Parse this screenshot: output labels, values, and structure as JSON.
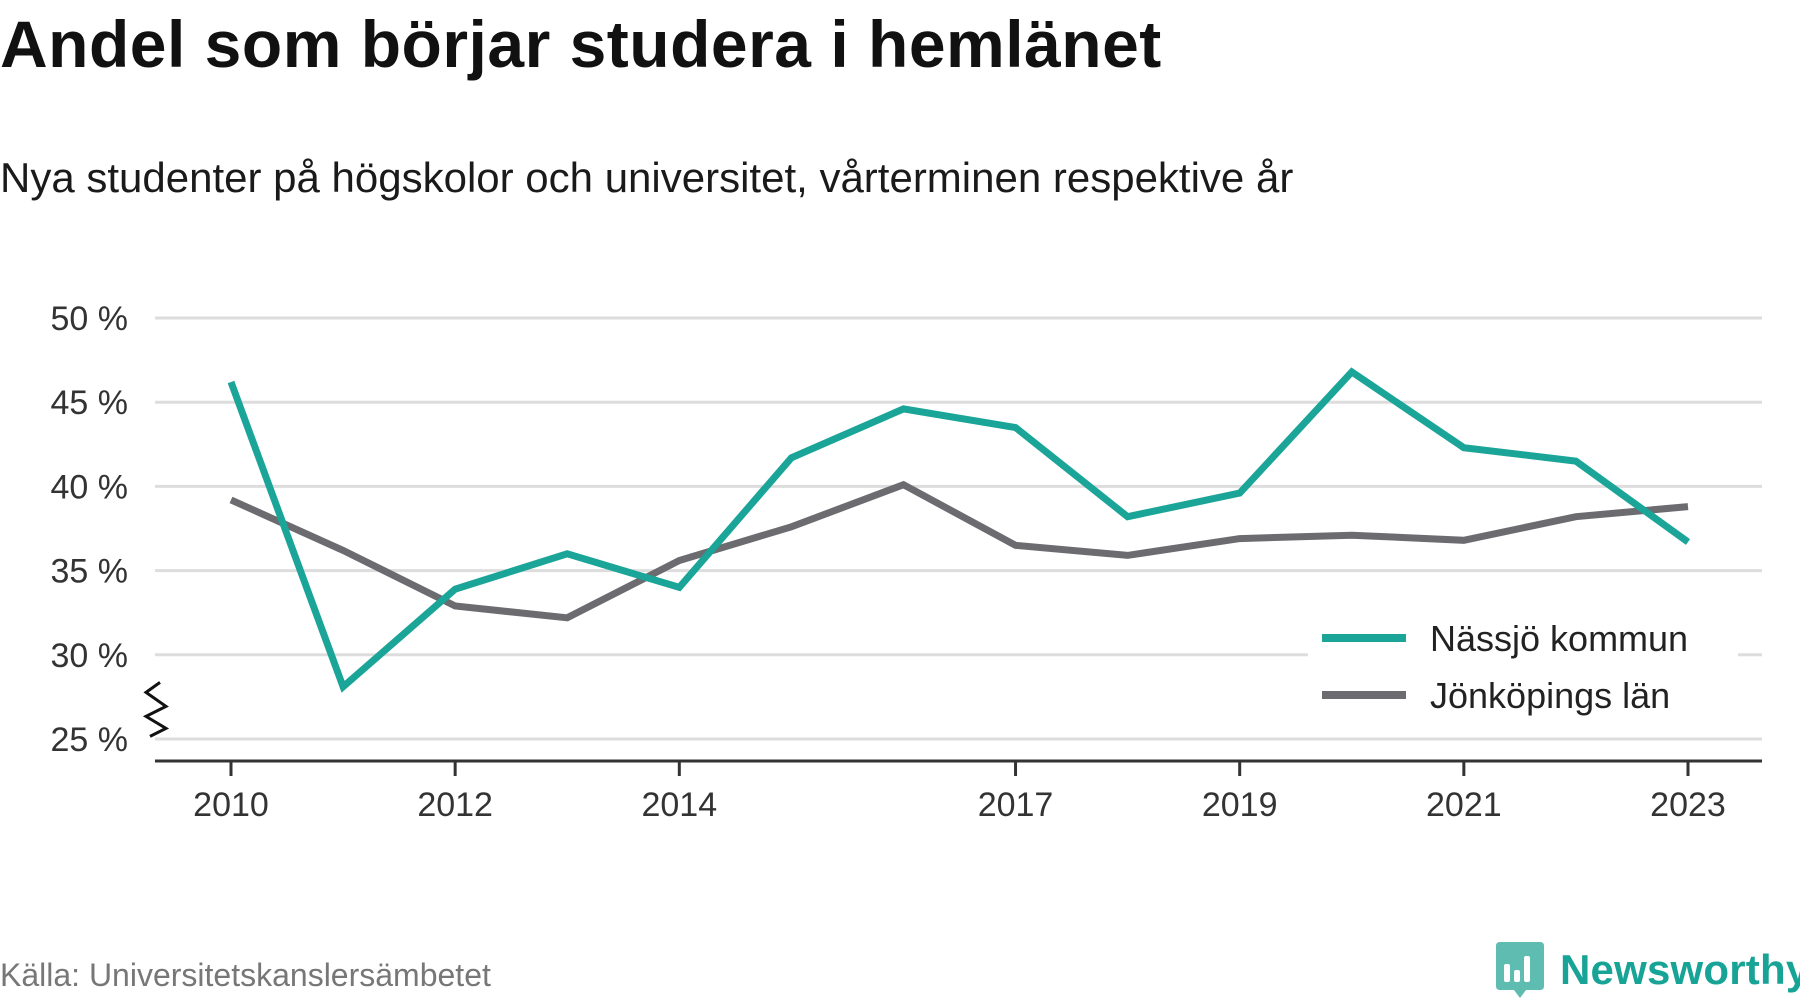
{
  "title": "Andel som börjar studera i hemlänet",
  "subtitle": "Nya studenter på högskolor och universitet, vårterminen respektive år",
  "source": "Källa: Universitetskanslersämbetet",
  "brand": "Newsworthy",
  "colors": {
    "teal": "#1aa598",
    "gray": "#6c6b70",
    "grid": "#dddddd",
    "axis": "#333333"
  },
  "chart_data": {
    "type": "line",
    "x": [
      2010,
      2011,
      2012,
      2013,
      2014,
      2015,
      2016,
      2017,
      2018,
      2019,
      2020,
      2021,
      2022,
      2023
    ],
    "x_tick_labels": [
      "2010",
      "2012",
      "2014",
      "2017",
      "2019",
      "2021",
      "2023"
    ],
    "y_tick_labels": [
      "50 %",
      "45 %",
      "40 %",
      "35 %",
      "30 %",
      "25 %"
    ],
    "y_ticks": [
      50,
      45,
      40,
      35,
      30,
      25
    ],
    "ylim": [
      25,
      50
    ],
    "y_axis_break": true,
    "grid": true,
    "legend_position": "bottom-right",
    "series": [
      {
        "name": "Nässjö kommun",
        "color": "#1aa598",
        "values": [
          46.2,
          28.1,
          33.9,
          36.0,
          34.0,
          41.7,
          44.6,
          43.5,
          38.2,
          39.6,
          46.8,
          42.3,
          41.5,
          36.7
        ]
      },
      {
        "name": "Jönköpings län",
        "color": "#6c6b70",
        "values": [
          39.2,
          36.2,
          32.9,
          32.2,
          35.6,
          37.6,
          40.1,
          36.5,
          35.9,
          36.9,
          37.1,
          36.8,
          38.2,
          38.8
        ]
      }
    ]
  }
}
